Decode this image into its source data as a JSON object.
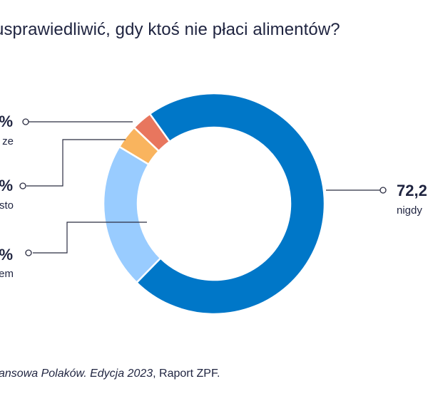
{
  "title": "usprawiedliwić, gdy ktoś nie płaci alimentów?",
  "source": {
    "part1": "ansowa Polaków. Edycja 2023",
    "part2": ", Raport ZPF."
  },
  "colors": {
    "text": "#1f2440",
    "leader": "#2b2d42"
  },
  "chart_data": {
    "type": "pie",
    "donut": true,
    "title": "usprawiedliwić, gdy ktoś nie płaci alimentów?",
    "slices": [
      {
        "value": 72.2,
        "value_label": "72,2",
        "label": "nigdy",
        "color": "#0077c8"
      },
      {
        "value": 21.3,
        "value_label": "%",
        "label": "em",
        "color": "#99ccff"
      },
      {
        "value": 3.5,
        "value_label": "%",
        "label": "sto",
        "color": "#f9b45e"
      },
      {
        "value": 3.0,
        "value_label": "%",
        "label": "ze",
        "color": "#e8765e"
      }
    ]
  }
}
